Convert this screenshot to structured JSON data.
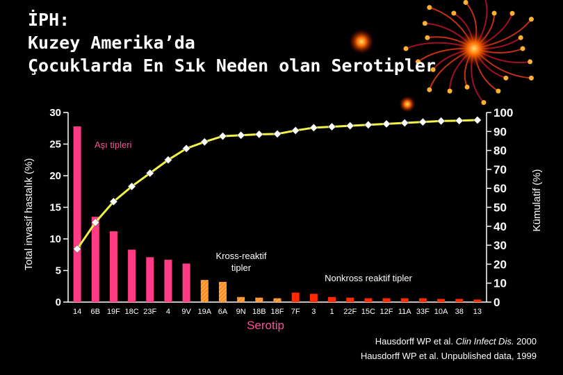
{
  "slide": {
    "title_lines": [
      "İPH:",
      "Kuzey Amerika’da",
      "Çocuklarda En Sık Neden olan Serotipler"
    ]
  },
  "citation": {
    "line1_pre": "Hausdorff WP et al. ",
    "line1_italic": "Clin Infect Dis.",
    "line1_post": " 2000",
    "line2": "Hausdorff WP et al. Unpublished data, 1999"
  },
  "chart_data": {
    "type": "bar",
    "xlabel": "Serotip",
    "ylabel_left": "Total invasif hastalık (%)",
    "ylabel_right": "Kümulatif (%)",
    "ylim_left": [
      0,
      30
    ],
    "ylim_right": [
      0,
      100
    ],
    "yticks_left": [
      "0",
      "5",
      "10",
      "15",
      "20",
      "25",
      "30"
    ],
    "yticks_right": [
      "0",
      "10",
      "20",
      "30",
      "40",
      "50",
      "60",
      "70",
      "80",
      "90",
      "100"
    ],
    "categories": [
      "14",
      "6B",
      "19F",
      "18C",
      "23F",
      "4",
      "9V",
      "19A",
      "6A",
      "9N",
      "18B",
      "18F",
      "7F",
      "3",
      "1",
      "22F",
      "15C",
      "12F",
      "11A",
      "33F",
      "10A",
      "38",
      "13"
    ],
    "series": [
      {
        "name": "Total invasif hastalık (%)",
        "kind": "bar",
        "values": [
          27.8,
          13.5,
          11.2,
          8.3,
          7.1,
          6.7,
          6.1,
          3.5,
          3.2,
          0.8,
          0.7,
          0.6,
          1.5,
          1.3,
          0.8,
          0.7,
          0.6,
          0.6,
          0.6,
          0.6,
          0.5,
          0.5,
          0.4
        ],
        "groups": [
          "vaccine",
          "vaccine",
          "vaccine",
          "vaccine",
          "vaccine",
          "vaccine",
          "vaccine",
          "cross",
          "cross",
          "cross",
          "cross",
          "cross",
          "nonvaccine",
          "nonvaccine",
          "nonvaccine",
          "nonvaccine",
          "nonvaccine",
          "nonvaccine",
          "nonvaccine",
          "nonvaccine",
          "nonvaccine",
          "nonvaccine",
          "nonvaccine"
        ]
      },
      {
        "name": "Kümulatif (%)",
        "kind": "line",
        "values": [
          28,
          42,
          53,
          61,
          68,
          75,
          81,
          84.5,
          87.5,
          88,
          88.5,
          88.7,
          90.5,
          92,
          92.5,
          93,
          93.5,
          94,
          94.5,
          95,
          95.5,
          95.7,
          96
        ]
      }
    ],
    "annotations": {
      "vaccine": "Aşı tipleri",
      "cross": "Kross-reaktif\ntipler",
      "nonvaccine": "Nonkross reaktif tipler"
    },
    "colors": {
      "vaccine": "#ff3b86",
      "cross_fill": "#ff8a2a",
      "cross_hatch": "#ffd060",
      "nonvaccine": "#ff2a00",
      "line": "#f2f24a",
      "marker": "#ffffff",
      "text_pink": "#ff4f9b",
      "axis": "#ffffff"
    }
  }
}
